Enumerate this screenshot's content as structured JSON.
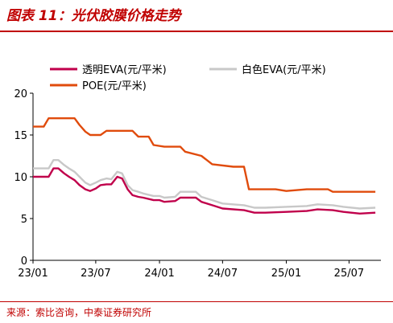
{
  "title": "图表 11：光伏胶膜价格走势",
  "source": "来源：索比咨询，中泰证券研究所",
  "colors": {
    "transparent_eva": "#c0004b",
    "white_eva": "#c8c8c8",
    "poe": "#e04b0c",
    "accent": "#c00000"
  },
  "chart_data": {
    "type": "line",
    "title": "",
    "xlabel": "",
    "ylabel": "",
    "ylim": [
      0,
      20
    ],
    "yticks": [
      "0",
      "5",
      "10",
      "15",
      "20"
    ],
    "xticks": [
      {
        "label": "23/01",
        "x": "2023-01"
      },
      {
        "label": "23/07",
        "x": "2023-07"
      },
      {
        "label": "24/01",
        "x": "2024-01"
      },
      {
        "label": "24/07",
        "x": "2024-07"
      },
      {
        "label": "25/01",
        "x": "2025-01"
      },
      {
        "label": "25/07",
        "x": "2025-07"
      }
    ],
    "legend_position": "top",
    "grid": false,
    "series": [
      {
        "name": "透明EVA(元/平米)",
        "key": "transparent_eva",
        "points": [
          [
            "2023-01-01",
            10.0
          ],
          [
            "2023-02-15",
            10.0
          ],
          [
            "2023-03-01",
            11.0
          ],
          [
            "2023-03-15",
            11.0
          ],
          [
            "2023-04-01",
            10.4
          ],
          [
            "2023-04-15",
            10.0
          ],
          [
            "2023-05-01",
            9.6
          ],
          [
            "2023-05-15",
            9.0
          ],
          [
            "2023-06-01",
            8.5
          ],
          [
            "2023-06-15",
            8.3
          ],
          [
            "2023-07-01",
            8.6
          ],
          [
            "2023-07-15",
            9.0
          ],
          [
            "2023-08-01",
            9.1
          ],
          [
            "2023-08-15",
            9.1
          ],
          [
            "2023-09-01",
            10.0
          ],
          [
            "2023-09-15",
            9.8
          ],
          [
            "2023-10-01",
            8.5
          ],
          [
            "2023-10-15",
            7.8
          ],
          [
            "2023-11-01",
            7.6
          ],
          [
            "2023-11-15",
            7.5
          ],
          [
            "2023-12-15",
            7.2
          ],
          [
            "2024-01-01",
            7.2
          ],
          [
            "2024-01-15",
            7.0
          ],
          [
            "2024-02-15",
            7.1
          ],
          [
            "2024-03-01",
            7.5
          ],
          [
            "2024-04-15",
            7.5
          ],
          [
            "2024-05-01",
            7.0
          ],
          [
            "2024-06-01",
            6.6
          ],
          [
            "2024-07-01",
            6.2
          ],
          [
            "2024-09-01",
            6.0
          ],
          [
            "2024-10-01",
            5.7
          ],
          [
            "2024-11-01",
            5.7
          ],
          [
            "2025-01-01",
            5.8
          ],
          [
            "2025-03-01",
            5.9
          ],
          [
            "2025-04-01",
            6.1
          ],
          [
            "2025-05-15",
            6.0
          ],
          [
            "2025-06-15",
            5.8
          ],
          [
            "2025-08-01",
            5.6
          ],
          [
            "2025-09-15",
            5.7
          ]
        ]
      },
      {
        "name": "白色EVA(元/平米)",
        "key": "white_eva",
        "points": [
          [
            "2023-01-01",
            11.0
          ],
          [
            "2023-02-15",
            11.0
          ],
          [
            "2023-03-01",
            12.0
          ],
          [
            "2023-03-15",
            12.0
          ],
          [
            "2023-04-01",
            11.4
          ],
          [
            "2023-04-15",
            11.0
          ],
          [
            "2023-05-01",
            10.6
          ],
          [
            "2023-05-15",
            10.0
          ],
          [
            "2023-06-01",
            9.3
          ],
          [
            "2023-06-15",
            9.0
          ],
          [
            "2023-07-01",
            9.3
          ],
          [
            "2023-07-15",
            9.6
          ],
          [
            "2023-08-01",
            9.8
          ],
          [
            "2023-08-15",
            9.7
          ],
          [
            "2023-09-01",
            10.6
          ],
          [
            "2023-09-15",
            10.4
          ],
          [
            "2023-10-01",
            9.0
          ],
          [
            "2023-10-15",
            8.4
          ],
          [
            "2023-11-01",
            8.2
          ],
          [
            "2023-11-15",
            8.0
          ],
          [
            "2023-12-15",
            7.7
          ],
          [
            "2024-01-01",
            7.7
          ],
          [
            "2024-01-15",
            7.5
          ],
          [
            "2024-02-15",
            7.6
          ],
          [
            "2024-03-01",
            8.2
          ],
          [
            "2024-04-15",
            8.2
          ],
          [
            "2024-05-01",
            7.6
          ],
          [
            "2024-06-01",
            7.2
          ],
          [
            "2024-07-01",
            6.8
          ],
          [
            "2024-09-01",
            6.6
          ],
          [
            "2024-10-01",
            6.3
          ],
          [
            "2024-11-01",
            6.3
          ],
          [
            "2025-01-01",
            6.4
          ],
          [
            "2025-03-01",
            6.5
          ],
          [
            "2025-04-01",
            6.7
          ],
          [
            "2025-05-15",
            6.6
          ],
          [
            "2025-06-15",
            6.4
          ],
          [
            "2025-08-01",
            6.2
          ],
          [
            "2025-09-15",
            6.3
          ]
        ]
      },
      {
        "name": "POE(元/平米)",
        "key": "poe",
        "points": [
          [
            "2023-01-01",
            16.0
          ],
          [
            "2023-02-01",
            16.0
          ],
          [
            "2023-02-15",
            17.0
          ],
          [
            "2023-05-01",
            17.0
          ],
          [
            "2023-05-15",
            16.2
          ],
          [
            "2023-06-01",
            15.4
          ],
          [
            "2023-06-15",
            15.0
          ],
          [
            "2023-07-15",
            15.0
          ],
          [
            "2023-08-01",
            15.5
          ],
          [
            "2023-10-15",
            15.5
          ],
          [
            "2023-11-01",
            14.8
          ],
          [
            "2023-12-01",
            14.8
          ],
          [
            "2023-12-15",
            13.8
          ],
          [
            "2024-01-15",
            13.6
          ],
          [
            "2024-03-01",
            13.6
          ],
          [
            "2024-03-15",
            13.0
          ],
          [
            "2024-05-01",
            12.5
          ],
          [
            "2024-06-01",
            11.5
          ],
          [
            "2024-08-01",
            11.2
          ],
          [
            "2024-09-01",
            11.2
          ],
          [
            "2024-09-15",
            8.5
          ],
          [
            "2024-12-01",
            8.5
          ],
          [
            "2025-01-01",
            8.3
          ],
          [
            "2025-03-01",
            8.5
          ],
          [
            "2025-05-01",
            8.5
          ],
          [
            "2025-05-15",
            8.2
          ],
          [
            "2025-09-15",
            8.2
          ]
        ]
      }
    ]
  }
}
